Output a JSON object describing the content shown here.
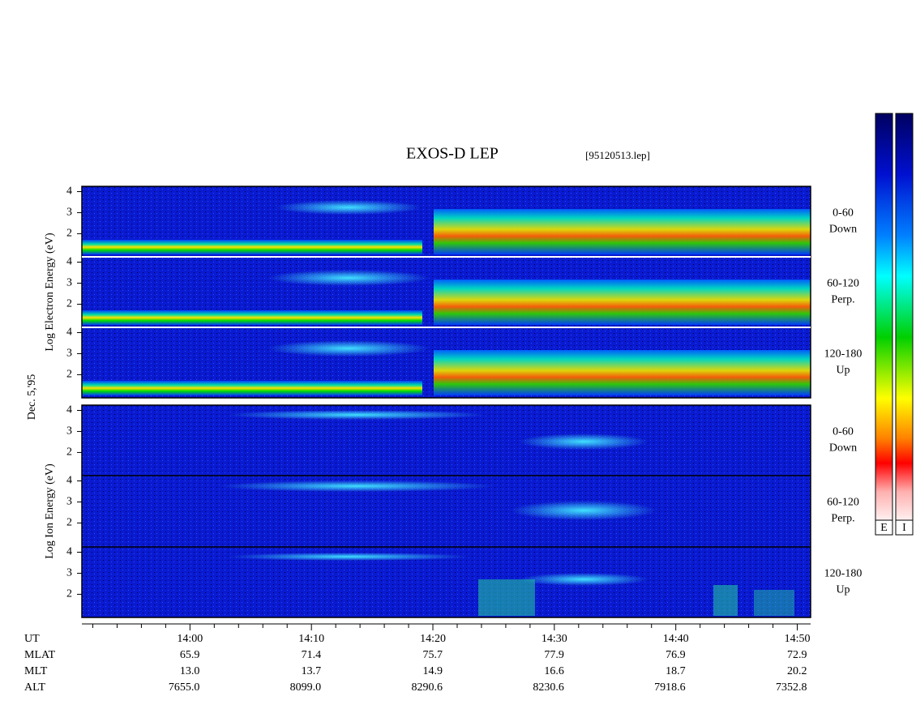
{
  "chart_data": {
    "type": "spectrogram",
    "title": "EXOS-D LEP",
    "subtitle": "[95120513.lep]",
    "date_label": "Dec. 5,'95",
    "groups": [
      {
        "axis_label": "Log  Electron  Energy (eV)",
        "panels": [
          {
            "label_top": "0-60",
            "label_bottom": "Down"
          },
          {
            "label_top": "60-120",
            "label_bottom": "Perp."
          },
          {
            "label_top": "120-180",
            "label_bottom": "Up"
          }
        ]
      },
      {
        "axis_label": "Log  Ion  Energy (eV)",
        "panels": [
          {
            "label_top": "0-60",
            "label_bottom": "Down"
          },
          {
            "label_top": "60-120",
            "label_bottom": "Perp."
          },
          {
            "label_top": "120-180",
            "label_bottom": "Up"
          }
        ]
      }
    ],
    "ylim": [
      0.9,
      4.25
    ],
    "yticks": [
      2,
      3,
      4
    ],
    "xlim": [
      831.1,
      891.1
    ],
    "xticks": [
      {
        "value": 840,
        "label": "14:00"
      },
      {
        "value": 850,
        "label": "14:10"
      },
      {
        "value": 860,
        "label": "14:20"
      },
      {
        "value": 870,
        "label": "14:30"
      },
      {
        "value": 880,
        "label": "14:40"
      },
      {
        "value": 890,
        "label": "14:50"
      }
    ],
    "minor_xticks": [
      832,
      834,
      836,
      838,
      842,
      844,
      846,
      848,
      852,
      854,
      856,
      858,
      862,
      864,
      866,
      868,
      872,
      874,
      876,
      878,
      882,
      884,
      886,
      888
    ],
    "time_row_label": "UT",
    "orbit_rows": [
      {
        "label": "MLAT",
        "values": [
          "65.9",
          "71.4",
          "75.7",
          "77.9",
          "76.9",
          "72.9"
        ]
      },
      {
        "label": "MLT",
        "values": [
          "13.0",
          "13.7",
          "14.9",
          "16.6",
          "18.7",
          "20.2"
        ]
      },
      {
        "label": "ALT",
        "values": [
          "7655.0",
          "8099.0",
          "8290.6",
          "8230.6",
          "7918.6",
          "7352.8"
        ]
      }
    ],
    "colorbar_labels": [
      "E",
      "I"
    ]
  }
}
